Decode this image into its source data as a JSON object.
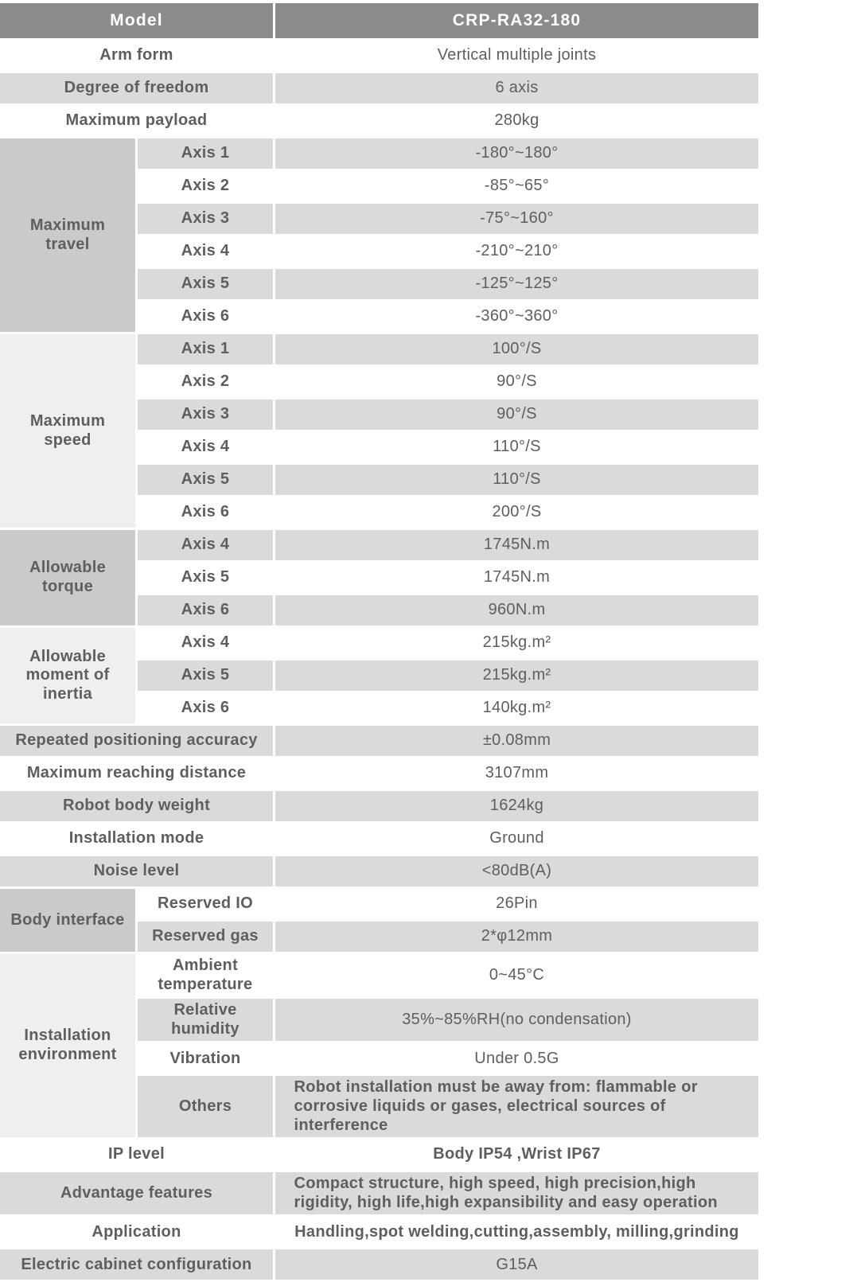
{
  "colors": {
    "header_bg": "#8a8b8b",
    "stripe_bg": "#d9dbda",
    "group_dark_bg": "#c9caca",
    "group_light_bg": "#efefef",
    "text": "#5d5e60",
    "header_text": "#ffffff"
  },
  "table": {
    "header": {
      "label": "Model",
      "value": "CRP-RA32-180"
    },
    "sections": [
      {
        "type": "simple",
        "label": "Arm form",
        "value": "Vertical multiple joints"
      },
      {
        "type": "simple",
        "label": "Degree of freedom",
        "value": "6 axis"
      },
      {
        "type": "simple",
        "label": "Maximum payload",
        "value": "280kg"
      },
      {
        "type": "group",
        "label": "Maximum travel",
        "items": [
          {
            "label": "Axis 1",
            "value": "-180°~180°"
          },
          {
            "label": "Axis 2",
            "value": "-85°~65°"
          },
          {
            "label": "Axis 3",
            "value": "-75°~160°"
          },
          {
            "label": "Axis 4",
            "value": "-210°~210°"
          },
          {
            "label": "Axis 5",
            "value": "-125°~125°"
          },
          {
            "label": "Axis 6",
            "value": "-360°~360°"
          }
        ]
      },
      {
        "type": "group",
        "label": "Maximum speed",
        "items": [
          {
            "label": "Axis 1",
            "value": "100°/S"
          },
          {
            "label": "Axis 2",
            "value": "90°/S"
          },
          {
            "label": "Axis 3",
            "value": "90°/S"
          },
          {
            "label": "Axis 4",
            "value": "110°/S"
          },
          {
            "label": "Axis 5",
            "value": "110°/S"
          },
          {
            "label": "Axis 6",
            "value": "200°/S"
          }
        ]
      },
      {
        "type": "group",
        "label": "Allowable torque",
        "items": [
          {
            "label": "Axis 4",
            "value": "1745N.m"
          },
          {
            "label": "Axis 5",
            "value": "1745N.m"
          },
          {
            "label": "Axis 6",
            "value": "960N.m"
          }
        ]
      },
      {
        "type": "group",
        "label": "Allowable moment of inertia",
        "items": [
          {
            "label": "Axis 4",
            "value": "215kg.m²"
          },
          {
            "label": "Axis 5",
            "value": "215kg.m²"
          },
          {
            "label": "Axis 6",
            "value": "140kg.m²"
          }
        ]
      },
      {
        "type": "simple",
        "label": "Repeated positioning accuracy",
        "value": "±0.08mm"
      },
      {
        "type": "simple",
        "label": "Maximum reaching distance",
        "value": "3107mm"
      },
      {
        "type": "simple",
        "label": "Robot body weight",
        "value": "1624kg"
      },
      {
        "type": "simple",
        "label": "Installation mode",
        "value": "Ground"
      },
      {
        "type": "simple",
        "label": "Noise level",
        "value": "<80dB(A)"
      },
      {
        "type": "group",
        "label": "Body interface",
        "items": [
          {
            "label": "Reserved IO",
            "value": "26Pin"
          },
          {
            "label": "Reserved gas",
            "value": "2*φ12mm"
          }
        ]
      },
      {
        "type": "group",
        "label": "Installation environment",
        "items": [
          {
            "label": "Ambient temperature",
            "value": "0~45°C"
          },
          {
            "label": "Relative humidity",
            "value": "35%~85%RH(no condensation)"
          },
          {
            "label": "Vibration",
            "value": "Under 0.5G"
          },
          {
            "label": "Others",
            "value": "Robot installation must be away from: flammable or corrosive liquids or gases, electrical sources of interference",
            "wrap": true,
            "emphasis": true
          }
        ]
      },
      {
        "type": "simple",
        "label": "IP level",
        "value": "Body IP54 ,Wrist IP67",
        "emphasis": true
      },
      {
        "type": "simple",
        "label": "Advantage features",
        "value": "Compact structure, high speed, high precision,high rigidity, high life,high expansibility and easy operation",
        "wrap": true,
        "emphasis": true
      },
      {
        "type": "simple",
        "label": "Application",
        "value": "Handling,spot welding,cutting,assembly, milling,grinding",
        "wrap": true,
        "emphasis": true
      },
      {
        "type": "simple",
        "label": "Electric cabinet configuration",
        "value": "G15A"
      }
    ]
  }
}
